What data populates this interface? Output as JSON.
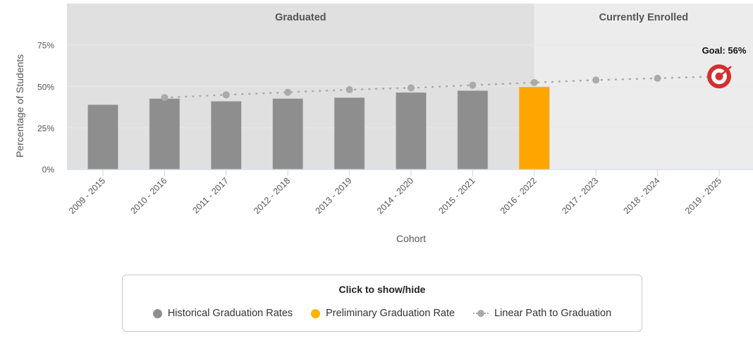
{
  "chart_data": {
    "type": "bar",
    "xlabel": "Cohort",
    "ylabel": "Percentage of Students",
    "ylim": [
      0,
      100
    ],
    "yticks": [
      "0%",
      "25%",
      "50%",
      "75%"
    ],
    "ytick_values": [
      0,
      25,
      50,
      75
    ],
    "grid": true,
    "categories": [
      "2009 - 2015",
      "2010 - 2016",
      "2011 - 2017",
      "2012 - 2018",
      "2013 - 2019",
      "2014 - 2020",
      "2015 - 2021",
      "2016 - 2022",
      "2017 - 2023",
      "2018 - 2024",
      "2019 - 2025"
    ],
    "bands": [
      {
        "label": "Graduated",
        "from": "2009 - 2015",
        "to": "2016 - 2022",
        "color": "#e0e0e0"
      },
      {
        "label": "Currently Enrolled",
        "from": "2016 - 2022",
        "to": "2019 - 2025",
        "color": "#ececec"
      }
    ],
    "series": [
      {
        "name": "Historical Graduation Rates",
        "type": "bar",
        "color": "#8e8e8e",
        "values": [
          38.9,
          42.6,
          41.0,
          42.6,
          43.2,
          46.3,
          47.4,
          null,
          null,
          null,
          null
        ]
      },
      {
        "name": "Preliminary Graduation Rate",
        "type": "bar",
        "color": "#ffa500",
        "values": [
          null,
          null,
          null,
          null,
          null,
          null,
          null,
          49.6,
          null,
          null,
          null
        ]
      },
      {
        "name": "Linear Path to Graduation",
        "type": "line",
        "style": "dotted",
        "color": "#aaaaaa",
        "values": [
          null,
          43.2,
          44.9,
          46.4,
          48.0,
          49.1,
          50.7,
          52.3,
          53.8,
          54.9,
          56
        ]
      }
    ],
    "goal": {
      "label": "Goal: 56%",
      "value": 56,
      "category": "2019 - 2025",
      "icon": "target-icon",
      "color": "#d32f2f"
    },
    "legend": {
      "position": "bottom",
      "title": "Click to show/hide"
    }
  }
}
